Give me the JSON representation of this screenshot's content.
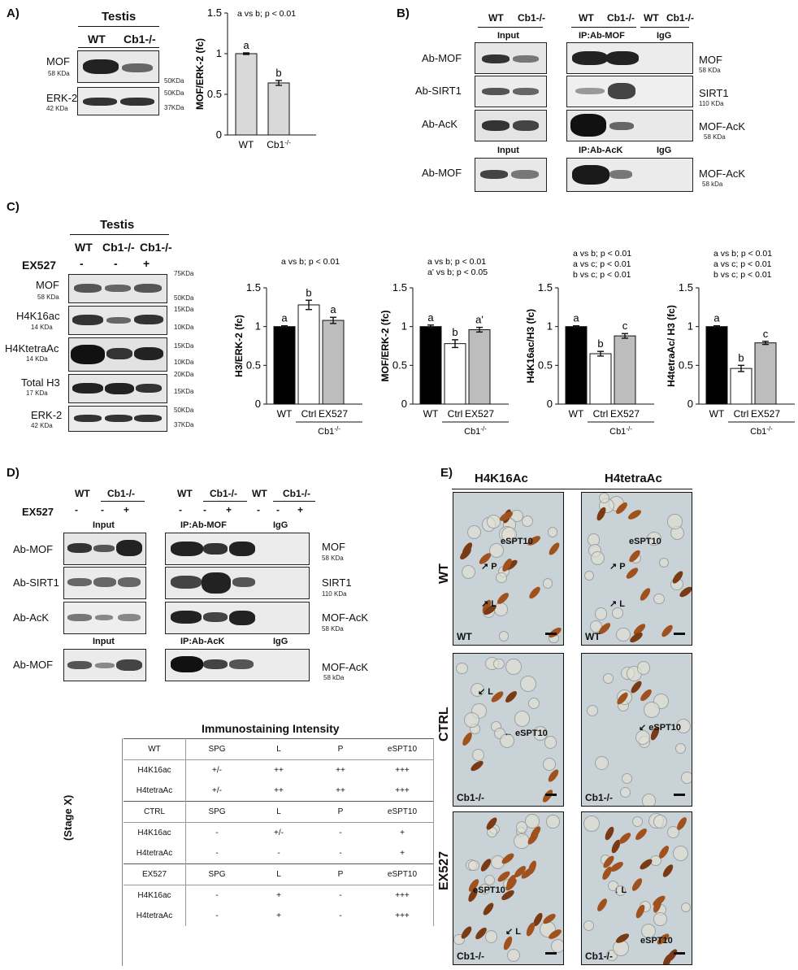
{
  "panels": {
    "A": "A)",
    "B": "B)",
    "C": "C)",
    "D": "D)",
    "E": "E)"
  },
  "panel_a": {
    "title": "Testis",
    "lanes": [
      "WT",
      "Cb1-/-"
    ],
    "rows": [
      {
        "name": "MOF",
        "kda": "58 KDa"
      },
      {
        "name": "ERK-2",
        "kda": "42 KDa"
      }
    ],
    "markers": [
      "50KDa",
      "50KDa",
      "37KDa"
    ]
  },
  "panel_b": {
    "lanes_input": [
      "WT",
      "Cb1-/-"
    ],
    "lanes_ip": [
      "WT",
      "Cb1-/-"
    ],
    "lanes_igg": [
      "WT",
      "Cb1-/-"
    ],
    "input": "Input",
    "ip_mof": "IP:Ab-MOF",
    "igg": "IgG",
    "ip_ack": "IP:Ab-AcK",
    "rows_left": [
      "Ab-MOF",
      "Ab-SIRT1",
      "Ab-AcK",
      "Ab-MOF"
    ],
    "rows_right": [
      {
        "name": "MOF",
        "kda": "58 KDa"
      },
      {
        "name": "SIRT1",
        "kda": "110 KDa"
      },
      {
        "name": "MOF-AcK",
        "kda": "58 KDa"
      },
      {
        "name": "MOF-AcK",
        "kda": "58 kDa"
      }
    ]
  },
  "panel_c": {
    "title": "Testis",
    "lanes": [
      "WT",
      "Cb1-/-",
      "Cb1-/-"
    ],
    "treat": "EX527",
    "signs": [
      "-",
      "-",
      "+"
    ],
    "rows": [
      {
        "name": "MOF",
        "kda": "58 KDa"
      },
      {
        "name": "H4K16ac",
        "kda": "14 KDa"
      },
      {
        "name": "H4KtetraAc",
        "kda": "14 KDa"
      },
      {
        "name": "Total H3",
        "kda": "17 KDa"
      },
      {
        "name": "ERK-2",
        "kda": "42 KDa"
      }
    ],
    "markers": [
      "75KDa",
      "50KDa",
      "15KDa",
      "10KDa",
      "15KDa",
      "10KDa",
      "20KDa",
      "15KDa",
      "50KDa",
      "37KDa"
    ]
  },
  "panel_d": {
    "lanes": [
      "WT",
      "Cb1-/-"
    ],
    "treat": "EX527",
    "signs": [
      "-",
      "-",
      "+"
    ],
    "input": "Input",
    "ip_mof": "IP:Ab-MOF",
    "igg": "IgG",
    "ip_ack": "IP:Ab-AcK",
    "rows_left": [
      "Ab-MOF",
      "Ab-SIRT1",
      "Ab-AcK",
      "Ab-MOF"
    ],
    "rows_right": [
      {
        "name": "MOF",
        "kda": "58 KDa"
      },
      {
        "name": "SIRT1",
        "kda": "110 KDa"
      },
      {
        "name": "MOF-AcK",
        "kda": "58 KDa"
      },
      {
        "name": "MOF-AcK",
        "kda": "58 kDa"
      }
    ]
  },
  "chart_data": [
    {
      "type": "bar",
      "categories": [
        "WT",
        "Cb1-/-"
      ],
      "values": [
        1.0,
        0.64
      ],
      "errors": [
        0.01,
        0.03
      ],
      "letters": [
        "a",
        "b"
      ],
      "ylabel": "MOF/ERK-2 (fc)",
      "ylim": [
        0,
        1.5
      ],
      "yticks": [
        "0",
        "0.5",
        "1",
        "1.5"
      ],
      "stats": [
        "a vs b; p < 0.01"
      ],
      "group_label": ""
    },
    {
      "type": "bar",
      "categories": [
        "WT",
        "Ctrl",
        "EX527"
      ],
      "values": [
        1.0,
        1.28,
        1.08
      ],
      "errors": [
        0.01,
        0.06,
        0.04
      ],
      "letters": [
        "a",
        "b",
        "a"
      ],
      "ylabel": "H3/ERK-2 (fc)",
      "ylim": [
        0,
        1.5
      ],
      "yticks": [
        "0",
        "0.5",
        "1",
        "1.5"
      ],
      "stats": [
        "a vs b; p < 0.01"
      ],
      "group_label": "Cb1-/-"
    },
    {
      "type": "bar",
      "categories": [
        "WT",
        "Ctrl",
        "EX527"
      ],
      "values": [
        1.0,
        0.78,
        0.96
      ],
      "errors": [
        0.02,
        0.05,
        0.03
      ],
      "letters": [
        "a",
        "b",
        "a'"
      ],
      "ylabel": "MOF/ERK-2 (fc)",
      "ylim": [
        0,
        1.5
      ],
      "yticks": [
        "0",
        "0.5",
        "1",
        "1.5"
      ],
      "stats": [
        "a vs b; p < 0.01",
        "a' vs b; p < 0.05"
      ],
      "group_label": "Cb1-/-"
    },
    {
      "type": "bar",
      "categories": [
        "WT",
        "Ctrl",
        "EX527"
      ],
      "values": [
        1.0,
        0.65,
        0.88
      ],
      "errors": [
        0.01,
        0.03,
        0.03
      ],
      "letters": [
        "a",
        "b",
        "c"
      ],
      "ylabel": "H4K16ac/H3 (fc)",
      "ylim": [
        0,
        1.5
      ],
      "yticks": [
        "0",
        "0.5",
        "1",
        "1.5"
      ],
      "stats": [
        "a vs b; p < 0.01",
        "a vs c; p < 0.01",
        "b vs c; p < 0.01"
      ],
      "group_label": "Cb1-/-"
    },
    {
      "type": "bar",
      "categories": [
        "WT",
        "Ctrl",
        "EX527"
      ],
      "values": [
        1.0,
        0.46,
        0.79
      ],
      "errors": [
        0.01,
        0.04,
        0.02
      ],
      "letters": [
        "a",
        "b",
        "c"
      ],
      "ylabel": "H4tetraAc/ H3 (fc)",
      "ylim": [
        0,
        1.5
      ],
      "yticks": [
        "0",
        "0.5",
        "1",
        "1.5"
      ],
      "stats": [
        "a vs b; p < 0.01",
        "a vs c; p < 0.01",
        "b vs c; p < 0.01"
      ],
      "group_label": "Cb1-/-"
    }
  ],
  "table": {
    "title": "Immunostaining Intensity",
    "side": "(Stage X)",
    "rows": [
      [
        "WT",
        "SPG",
        "L",
        "P",
        "eSPT10"
      ],
      [
        "H4K16ac",
        "+/-",
        "++",
        "++",
        "+++"
      ],
      [
        "H4tetraAc",
        "+/-",
        "++",
        "++",
        "+++"
      ],
      [
        "CTRL",
        "SPG",
        "L",
        "P",
        "eSPT10"
      ],
      [
        "H4K16ac",
        "-",
        "+/-",
        "-",
        "+"
      ],
      [
        "H4tetraAc",
        "-",
        "-",
        "-",
        "+"
      ],
      [
        "EX527",
        "SPG",
        "L",
        "P",
        "eSPT10"
      ],
      [
        "H4K16ac",
        "-",
        "+",
        "-",
        "+++"
      ],
      [
        "H4tetraAc",
        "-",
        "+",
        "-",
        "+++"
      ]
    ]
  },
  "panel_e": {
    "cols": [
      "H4K16Ac",
      "H4tetraAc"
    ],
    "rows": [
      "WT",
      "CTRL",
      "EX527"
    ],
    "corner": [
      "WT",
      "WT",
      "Cb1-/-",
      "Cb1-/-",
      "Cb1-/-",
      "Cb1-/-"
    ],
    "annot": {
      "espt": "eSPT10",
      "p": "P",
      "l": "L"
    }
  },
  "colors": {
    "wt": "#000000",
    "ctrl": "#ffffff",
    "ex527": "#bdbdbd",
    "a_bar": "#d9d9d9",
    "stain": "#a0521e",
    "bg": "#c9d2d6"
  }
}
